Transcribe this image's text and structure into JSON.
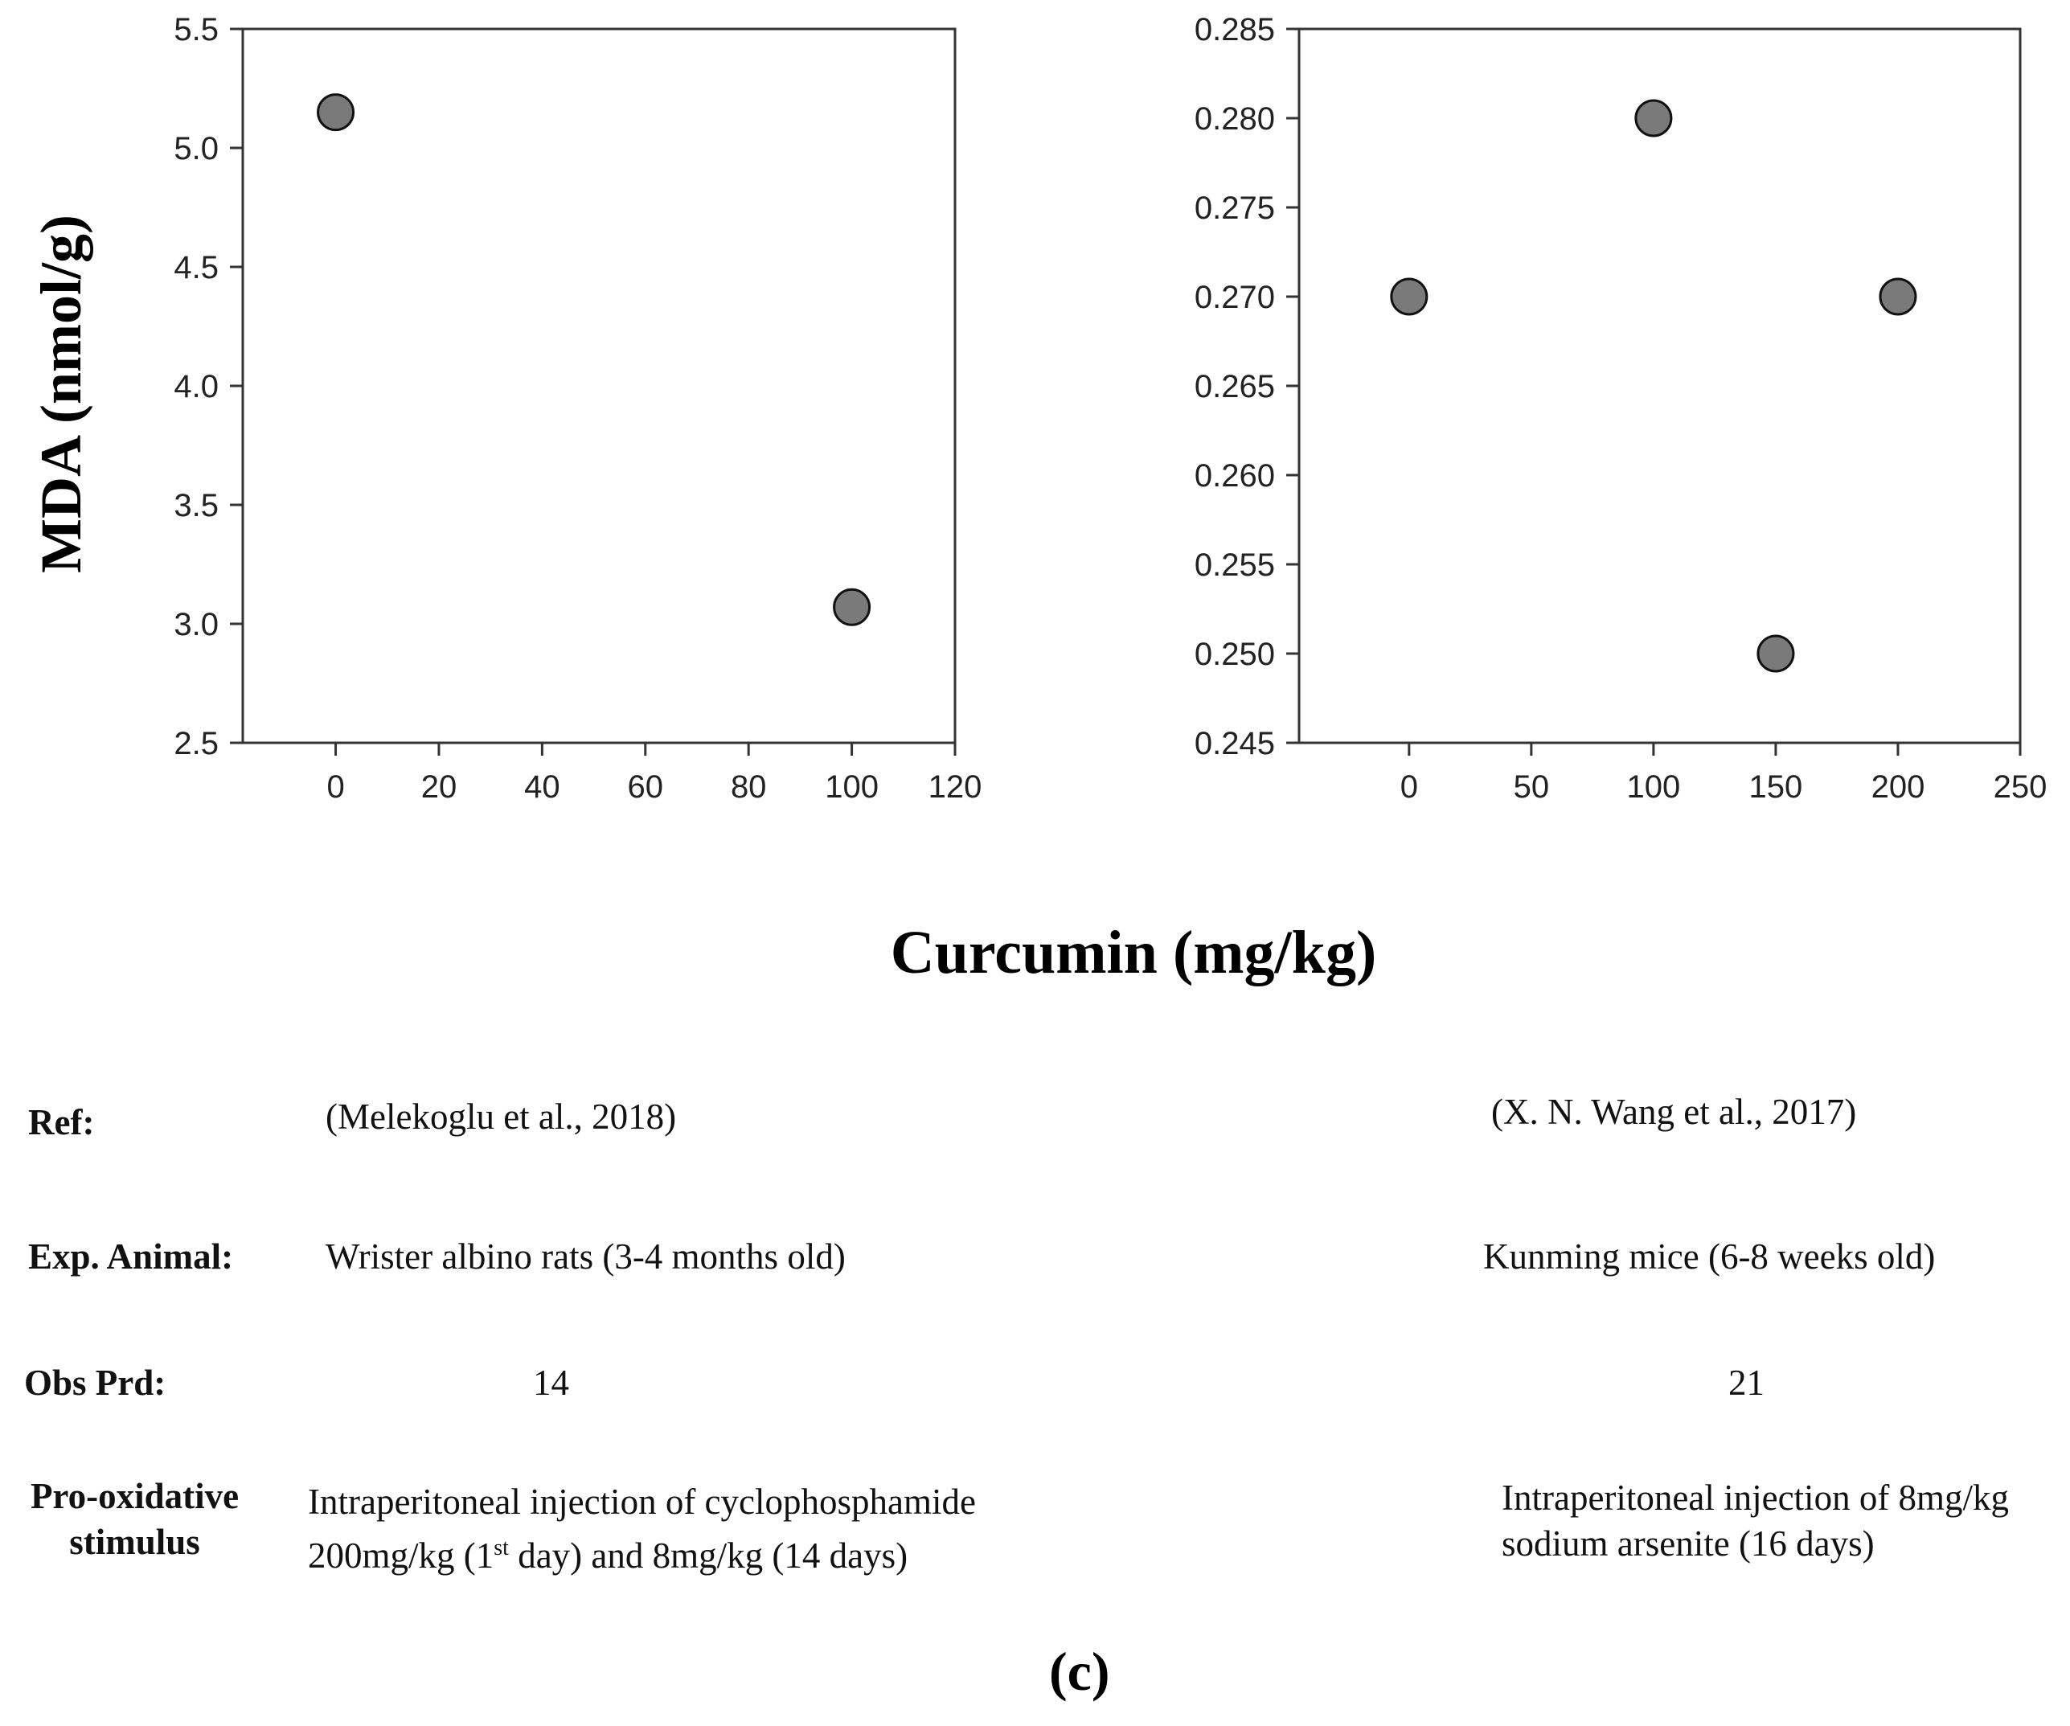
{
  "chart_data": [
    {
      "type": "scatter",
      "x": [
        0,
        100
      ],
      "y": [
        5.15,
        3.07
      ],
      "xlim": [
        -18,
        120
      ],
      "ylim": [
        2.5,
        5.5
      ],
      "xticks": [
        0,
        20,
        40,
        60,
        80,
        100,
        120
      ],
      "yticks": [
        "2.5",
        "3.0",
        "3.5",
        "4.0",
        "4.5",
        "5.0",
        "5.5"
      ],
      "marker_color": "#7a7a7a",
      "ylabel": "MDA (nmol/g)"
    },
    {
      "type": "scatter",
      "x": [
        0,
        100,
        150,
        200
      ],
      "y": [
        0.27,
        0.28,
        0.25,
        0.27
      ],
      "xlim": [
        -45,
        250
      ],
      "ylim": [
        0.245,
        0.285
      ],
      "xticks": [
        0,
        50,
        100,
        150,
        200,
        250
      ],
      "yticks": [
        "0.245",
        "0.250",
        "0.255",
        "0.260",
        "0.265",
        "0.270",
        "0.275",
        "0.280",
        "0.285"
      ],
      "marker_color": "#7a7a7a"
    }
  ],
  "shared": {
    "xlabel": "Curcumin (mg/kg)",
    "ylabel": "MDA (nmol/g)",
    "panel_label": "(c)"
  },
  "info": {
    "ref_label": "Ref:",
    "animal_label": "Exp. Animal:",
    "obs_label": "Obs Prd:",
    "stim_label_1": "Pro-oxidative",
    "stim_label_2": "stimulus",
    "left": {
      "ref": "(Melekoglu et al., 2018)",
      "animal": "Wrister albino rats (3-4 months old)",
      "obs": "14",
      "stim_1": "Intraperitoneal injection of cyclophosphamide",
      "stim_2_pre": "200mg/kg (1",
      "stim_2_sup": "st",
      "stim_2_post": " day) and 8mg/kg (14 days)"
    },
    "right": {
      "ref": "(X. N. Wang et al., 2017)",
      "animal": "Kunming mice (6-8 weeks old)",
      "obs": "21",
      "stim_1": "Intraperitoneal injection of 8mg/kg",
      "stim_2": "sodium arsenite (16 days)"
    }
  }
}
